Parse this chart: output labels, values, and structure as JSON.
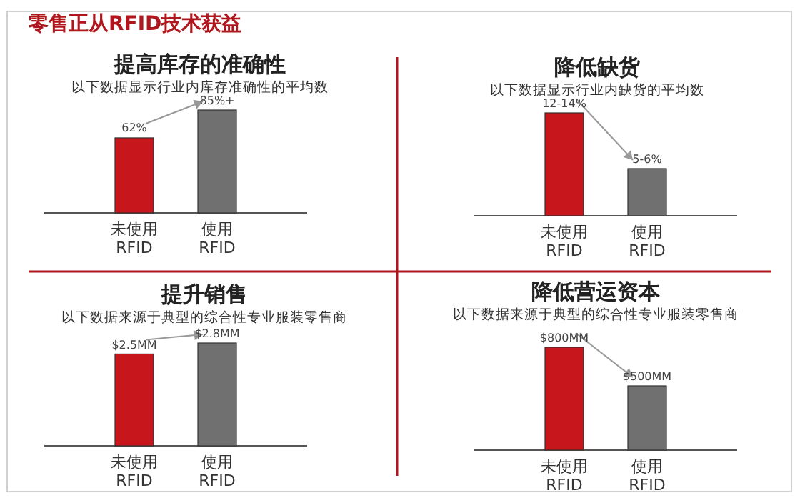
{
  "chart_data": [
    {
      "type": "bar",
      "title": "提高库存的准确性",
      "subtitle": "以下数据显示行业内库存准确性的平均数",
      "annotations": [
        "零售正从RFID技术获益"
      ],
      "categories": [
        "未使用RFID",
        "使用RFID"
      ],
      "values": [
        62,
        85
      ],
      "colors": [
        "#c8161d",
        "#707070"
      ],
      "value_labels": [
        "62%",
        "85%+"
      ]
    },
    {
      "type": "bar",
      "title": "降低缺货",
      "subtitle": "以下数据显示行业内缺货的平均数",
      "categories": [
        "未使用RFID",
        "使用RFID"
      ],
      "values": [
        12,
        5.5
      ],
      "colors": [
        "#c8161d",
        "#707070"
      ],
      "value_labels": [
        "12-14%",
        "5-6%"
      ]
    },
    {
      "type": "bar",
      "title": "提升销售",
      "subtitle": "以下数据来源于典型的综合性专业服装零售商",
      "categories": [
        "未使用RFID",
        "使用RFID"
      ],
      "values": [
        2.5,
        2.8
      ],
      "colors": [
        "#c8161d",
        "#707070"
      ],
      "value_labels": [
        "$2.5MM",
        "$2.8MM"
      ]
    },
    {
      "type": "bar",
      "title": "降低营运资本",
      "subtitle": "以下数据来源于典型的综合性专业服装零售商",
      "categories": [
        "未使用RFID",
        "使用RFID"
      ],
      "values": [
        800,
        500
      ],
      "colors": [
        "#c8161d",
        "#707070"
      ],
      "value_labels": [
        "$800MM",
        "$500MM"
      ]
    }
  ]
}
